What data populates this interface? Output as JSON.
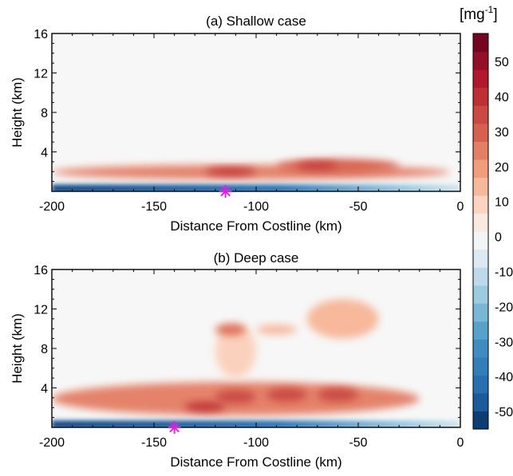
{
  "colors": {
    "background": "#f7f7f7",
    "positive_peak": "#67001f",
    "negative_peak": "#053061",
    "marker": "#e020e0"
  },
  "chart_data": [
    {
      "type": "heatmap",
      "title": "(a) Shallow case",
      "xlabel": "Distance From Costline (km)",
      "ylabel": "Height (km)",
      "xlim": [
        -200,
        0
      ],
      "ylim": [
        0,
        16
      ],
      "xticks": [
        "-200",
        "-150",
        "-100",
        "-50",
        "0"
      ],
      "yticks": [
        "4",
        "8",
        "12",
        "16"
      ],
      "xtick_values": [
        -200,
        -150,
        -100,
        -50,
        0
      ],
      "ytick_values": [
        4,
        8,
        12,
        16
      ],
      "marker": {
        "symbol": "asterisk",
        "x": -115,
        "y": 0
      },
      "surface_layer": {
        "value": -50,
        "x_from": -200,
        "x_to": 0,
        "z_top": 0.7
      },
      "features": [
        {
          "x": [
            -200,
            -5
          ],
          "z": [
            1.2,
            2.7
          ],
          "value": 25
        },
        {
          "x": [
            -125,
            -100
          ],
          "z": [
            1.6,
            2.4
          ],
          "value": 40
        },
        {
          "x": [
            -90,
            -30
          ],
          "z": [
            1.9,
            3.3
          ],
          "value": 30
        },
        {
          "x": [
            -80,
            -60
          ],
          "z": [
            2.2,
            3.0
          ],
          "value": 38
        }
      ]
    },
    {
      "type": "heatmap",
      "title": "(b) Deep case",
      "xlabel": "Distance From Costline (km)",
      "ylabel": "Height (km)",
      "xlim": [
        -200,
        0
      ],
      "ylim": [
        0,
        16
      ],
      "xticks": [
        "-200",
        "-150",
        "-100",
        "-50",
        "0"
      ],
      "yticks": [
        "4",
        "8",
        "12",
        "16"
      ],
      "xtick_values": [
        -200,
        -150,
        -100,
        -50,
        0
      ],
      "ytick_values": [
        4,
        8,
        12,
        16
      ],
      "marker": {
        "symbol": "asterisk",
        "x": -140,
        "y": 0
      },
      "surface_layer": {
        "value": -50,
        "x_from": -200,
        "x_to": 0,
        "z_top": 0.7
      },
      "features": [
        {
          "x": [
            -200,
            -20
          ],
          "z": [
            1.2,
            4.6
          ],
          "value": 25
        },
        {
          "x": [
            -135,
            -115
          ],
          "z": [
            1.6,
            2.6
          ],
          "value": 40
        },
        {
          "x": [
            -120,
            -100
          ],
          "z": [
            2.4,
            3.8
          ],
          "value": 35
        },
        {
          "x": [
            -95,
            -75
          ],
          "z": [
            2.6,
            4.0
          ],
          "value": 35
        },
        {
          "x": [
            -70,
            -50
          ],
          "z": [
            2.6,
            4.0
          ],
          "value": 35
        },
        {
          "x": [
            -120,
            -100
          ],
          "z": [
            5.0,
            10.5
          ],
          "value": 10
        },
        {
          "x": [
            -120,
            -105
          ],
          "z": [
            9.3,
            10.5
          ],
          "value": 28
        },
        {
          "x": [
            -100,
            -80
          ],
          "z": [
            9.4,
            10.4
          ],
          "value": 15
        },
        {
          "x": [
            -75,
            -40
          ],
          "z": [
            9.0,
            13.0
          ],
          "value": 15
        }
      ]
    }
  ],
  "colorbar": {
    "unit": "[mg",
    "unit_sup": "-1",
    "unit_close": "]",
    "vmin": -55,
    "vmax": 58,
    "labels": [
      "50",
      "40",
      "30",
      "20",
      "10",
      "0",
      "-10",
      "-20",
      "-30",
      "-40",
      "-50"
    ],
    "label_values": [
      50,
      40,
      30,
      20,
      10,
      0,
      -10,
      -20,
      -30,
      -40,
      -50
    ]
  }
}
